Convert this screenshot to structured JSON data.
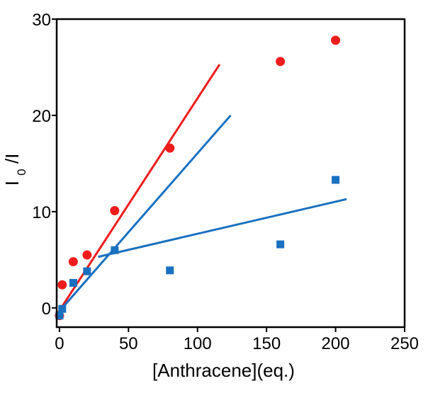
{
  "chart_data": {
    "type": "scatter",
    "title": "",
    "xlabel": "[Anthracene](eq.)",
    "ylabel": {
      "main": "I",
      "sub": "0",
      "tail": "/I"
    },
    "xlim": [
      -2,
      250
    ],
    "ylim": [
      -2,
      30
    ],
    "x_ticks": [
      0,
      50,
      100,
      150,
      200,
      250
    ],
    "y_ticks": [
      0,
      10,
      20,
      30
    ],
    "x_tick_labels": [
      "0",
      "50",
      "100",
      "150",
      "200",
      "250"
    ],
    "y_tick_labels": [
      "0",
      "10",
      "20",
      "30"
    ],
    "grid": false,
    "legend": "none",
    "series": [
      {
        "marker": "circle",
        "color": "#ee1c1c",
        "points": [
          {
            "x": 0,
            "y": -0.8
          },
          {
            "x": 2,
            "y": 2.4
          },
          {
            "x": 10,
            "y": 4.8
          },
          {
            "x": 20,
            "y": 5.5
          },
          {
            "x": 40,
            "y": 10.1
          },
          {
            "x": 80,
            "y": 16.6
          },
          {
            "x": 160,
            "y": 25.6
          },
          {
            "x": 200,
            "y": 27.8
          }
        ]
      },
      {
        "marker": "square",
        "color": "#1a70c0",
        "points": [
          {
            "x": 0,
            "y": -0.8
          },
          {
            "x": 2,
            "y": -0.1
          },
          {
            "x": 10,
            "y": 2.6
          },
          {
            "x": 20,
            "y": 3.8
          },
          {
            "x": 40,
            "y": 6.0
          },
          {
            "x": 80,
            "y": 3.9
          },
          {
            "x": 160,
            "y": 6.6
          },
          {
            "x": 200,
            "y": 13.3
          }
        ]
      }
    ],
    "lines": [
      {
        "color": "#ee1c1c",
        "x1": -1,
        "y1": -0.5,
        "x2": 116,
        "y2": 25.3
      },
      {
        "color": "#1a70c0",
        "x1": -1,
        "y1": -0.5,
        "x2": 124,
        "y2": 20.0
      },
      {
        "color": "#1a70c0",
        "x1": 28,
        "y1": 5.3,
        "x2": 208,
        "y2": 11.3
      }
    ]
  }
}
